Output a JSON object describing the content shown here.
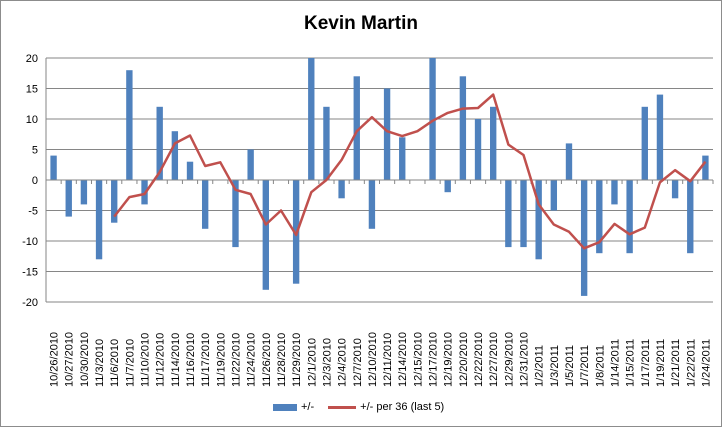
{
  "colors": {
    "bar": "#4f81bd",
    "line": "#c0504d",
    "grid": "#868686",
    "axis": "#868686"
  },
  "chart_data": {
    "type": "bar",
    "title": "Kevin Martin",
    "xlabel": "",
    "ylabel": "",
    "ylim": [
      -20,
      20
    ],
    "yticks": [
      -20,
      -15,
      -10,
      -5,
      0,
      5,
      10,
      15,
      20
    ],
    "grid": true,
    "legend_position": "bottom",
    "categories": [
      "10/26/2010",
      "10/27/2010",
      "10/30/2010",
      "11/3/2010",
      "11/6/2010",
      "11/7/2010",
      "11/10/2010",
      "11/12/2010",
      "11/14/2010",
      "11/16/2010",
      "11/17/2010",
      "11/19/2010",
      "11/22/2010",
      "11/24/2010",
      "11/26/2010",
      "11/28/2010",
      "11/29/2010",
      "12/1/2010",
      "12/3/2010",
      "12/4/2010",
      "12/7/2010",
      "12/10/2010",
      "12/11/2010",
      "12/14/2010",
      "12/15/2010",
      "12/17/2010",
      "12/19/2010",
      "12/20/2010",
      "12/22/2010",
      "12/27/2010",
      "12/29/2010",
      "12/31/2010",
      "1/2/2011",
      "1/3/2011",
      "1/5/2011",
      "1/7/2011",
      "1/8/2011",
      "1/14/2011",
      "1/15/2011",
      "1/17/2011",
      "1/19/2011",
      "1/21/2011",
      "1/22/2011",
      "1/24/2011"
    ],
    "series": [
      {
        "name": "+/-",
        "type": "bar",
        "values": [
          4,
          -6,
          -4,
          -13,
          -7,
          18,
          -4,
          12,
          8,
          3,
          -8,
          0,
          -11,
          5,
          -18,
          0,
          -17,
          20,
          12,
          -3,
          17,
          -8,
          15,
          7,
          0,
          20,
          -2,
          17,
          10,
          12,
          -11,
          -11,
          -13,
          -5,
          6,
          -19,
          -12,
          -4,
          -12,
          12,
          14,
          -3,
          -12,
          4
        ]
      },
      {
        "name": "+/- per 36 (last 5)",
        "type": "line",
        "values": [
          null,
          null,
          null,
          null,
          -6,
          -2.8,
          -2.3,
          1.3,
          6,
          7.3,
          2.3,
          2.9,
          -1.6,
          -2.3,
          -7.3,
          -5,
          -9,
          -2,
          0,
          3.3,
          8,
          10.3,
          8,
          7.2,
          8,
          9.7,
          11,
          11.7,
          11.8,
          14,
          5.8,
          4.1,
          -4,
          -7.3,
          -8.5,
          -11.2,
          -10.2,
          -7.2,
          -8.9,
          -7.8,
          -0.4,
          1.6,
          -0.2,
          3
        ]
      }
    ]
  }
}
